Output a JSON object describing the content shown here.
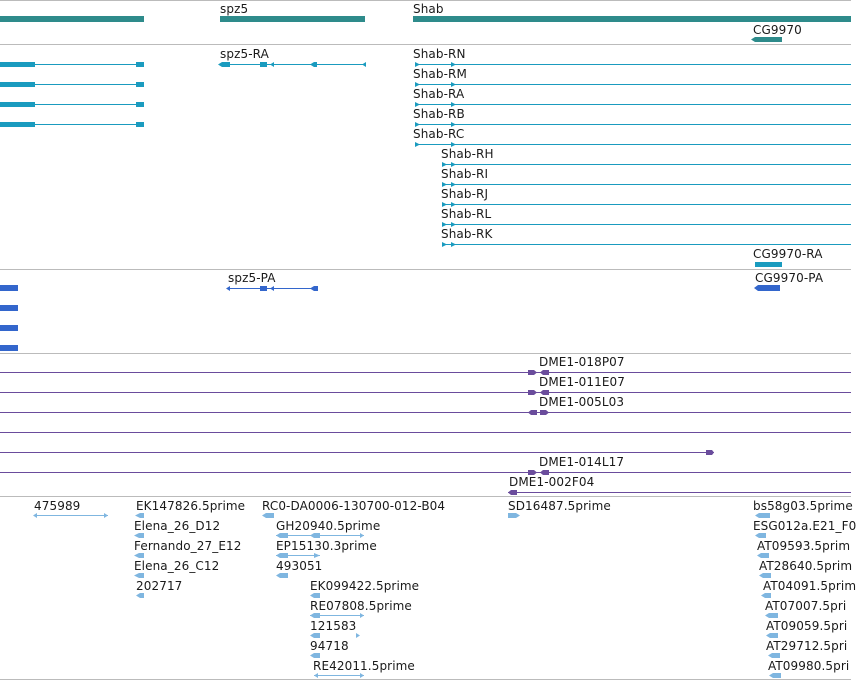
{
  "colors": {
    "gene": "#2e8b8b",
    "transcript": "#1a9bbf",
    "protein": "#3366cc",
    "clone": "#6a4c9c",
    "est": "#7fb6e0",
    "separator": "#bbbbbb"
  },
  "tracks": {
    "genes": [
      {
        "name": "spz5",
        "label": "spz5"
      },
      {
        "name": "shab",
        "label": "Shab"
      },
      {
        "name": "cg9970",
        "label": "CG9970"
      }
    ],
    "transcripts": [
      {
        "name": "spz5-ra",
        "label": "spz5-RA"
      },
      {
        "name": "shab-rn",
        "label": "Shab-RN"
      },
      {
        "name": "shab-rm",
        "label": "Shab-RM"
      },
      {
        "name": "shab-ra",
        "label": "Shab-RA"
      },
      {
        "name": "shab-rb",
        "label": "Shab-RB"
      },
      {
        "name": "shab-rc",
        "label": "Shab-RC"
      },
      {
        "name": "shab-rh",
        "label": "Shab-RH"
      },
      {
        "name": "shab-ri",
        "label": "Shab-RI"
      },
      {
        "name": "shab-rj",
        "label": "Shab-RJ"
      },
      {
        "name": "shab-rl",
        "label": "Shab-RL"
      },
      {
        "name": "shab-rk",
        "label": "Shab-RK"
      },
      {
        "name": "cg9970-ra",
        "label": "CG9970-RA"
      }
    ],
    "proteins": [
      {
        "name": "spz5-pa",
        "label": "spz5-PA"
      },
      {
        "name": "cg9970-pa",
        "label": "CG9970-PA"
      }
    ],
    "clones": [
      {
        "name": "dme1-018p07",
        "label": "DME1-018P07"
      },
      {
        "name": "dme1-011e07",
        "label": "DME1-011E07"
      },
      {
        "name": "dme1-005l03",
        "label": "DME1-005L03"
      },
      {
        "name": "dme1-014l17",
        "label": "DME1-014L17"
      },
      {
        "name": "dme1-002f04",
        "label": "DME1-002F04"
      }
    ],
    "ests": [
      {
        "name": "est-475989",
        "label": "475989"
      },
      {
        "name": "est-ek147826",
        "label": "EK147826.5prime"
      },
      {
        "name": "est-elena-26-d12",
        "label": "Elena_26_D12"
      },
      {
        "name": "est-fernando-27-e12",
        "label": "Fernando_27_E12"
      },
      {
        "name": "est-elena-26-c12",
        "label": "Elena_26_C12"
      },
      {
        "name": "est-202717",
        "label": "202717"
      },
      {
        "name": "est-rc0",
        "label": "RC0-DA0006-130700-012-B04"
      },
      {
        "name": "est-gh20940",
        "label": "GH20940.5prime"
      },
      {
        "name": "est-ep15130",
        "label": "EP15130.3prime"
      },
      {
        "name": "est-493051",
        "label": "493051"
      },
      {
        "name": "est-ek099422",
        "label": "EK099422.5prime"
      },
      {
        "name": "est-re07808",
        "label": "RE07808.5prime"
      },
      {
        "name": "est-121583",
        "label": "121583"
      },
      {
        "name": "est-94718",
        "label": "94718"
      },
      {
        "name": "est-re42011",
        "label": "RE42011.5prime"
      },
      {
        "name": "est-sd16487",
        "label": "SD16487.5prime"
      },
      {
        "name": "est-bs58g03",
        "label": "bs58g03.5prime"
      },
      {
        "name": "est-esg012a",
        "label": "ESG012a.E21_F0"
      },
      {
        "name": "est-at09593",
        "label": "AT09593.5prim"
      },
      {
        "name": "est-at28640",
        "label": "AT28640.5prim"
      },
      {
        "name": "est-at04091",
        "label": "AT04091.5prim"
      },
      {
        "name": "est-at07007",
        "label": "AT07007.5pri"
      },
      {
        "name": "est-at09059",
        "label": "AT09059.5pri"
      },
      {
        "name": "est-at29712",
        "label": "AT29712.5pri"
      },
      {
        "name": "est-at09980",
        "label": "AT09980.5pri"
      }
    ]
  }
}
